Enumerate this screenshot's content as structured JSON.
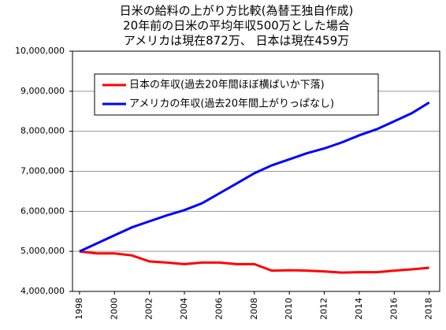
{
  "chart_data": {
    "type": "line",
    "title": [
      "日米の給料の上がり方比較(為替王独自作成)",
      "20年前の日米の平均年収500万とした場合",
      "アメリカは現在872万、 日本は現在459万"
    ],
    "x": [
      1998,
      1999,
      2000,
      2001,
      2002,
      2003,
      2004,
      2005,
      2006,
      2007,
      2008,
      2009,
      2010,
      2011,
      2012,
      2013,
      2014,
      2015,
      2016,
      2017,
      2018
    ],
    "series": [
      {
        "name": "日本の年収(過去20年間ほぼ横ばいか下落)",
        "color": "#ff0000",
        "values": [
          5000000,
          4950000,
          4950000,
          4900000,
          4750000,
          4720000,
          4680000,
          4720000,
          4720000,
          4680000,
          4680000,
          4520000,
          4530000,
          4520000,
          4500000,
          4470000,
          4480000,
          4480000,
          4520000,
          4550000,
          4590000
        ]
      },
      {
        "name": "アメリカの年収(過去20年間上がりっぱなし)",
        "color": "#0000ff",
        "values": [
          5000000,
          5200000,
          5400000,
          5600000,
          5750000,
          5900000,
          6030000,
          6200000,
          6450000,
          6700000,
          6950000,
          7150000,
          7300000,
          7450000,
          7570000,
          7720000,
          7900000,
          8050000,
          8250000,
          8450000,
          8720000
        ]
      }
    ],
    "xlim": [
      1997.6,
      2018.6
    ],
    "xticks": [
      1998,
      2000,
      2002,
      2004,
      2006,
      2008,
      2010,
      2012,
      2014,
      2016,
      2018
    ],
    "ylim": [
      4000000,
      10000000
    ],
    "yticks": [
      {
        "value": 4000000,
        "label": "4,000,000"
      },
      {
        "value": 5000000,
        "label": "5,000,000"
      },
      {
        "value": 6000000,
        "label": "6,000,000"
      },
      {
        "value": 7000000,
        "label": "7,000,000"
      },
      {
        "value": 8000000,
        "label": "8,000,000"
      },
      {
        "value": 9000000,
        "label": "9,000,000"
      },
      {
        "value": 10000000,
        "label": "10,000,000"
      }
    ],
    "grid": true
  }
}
